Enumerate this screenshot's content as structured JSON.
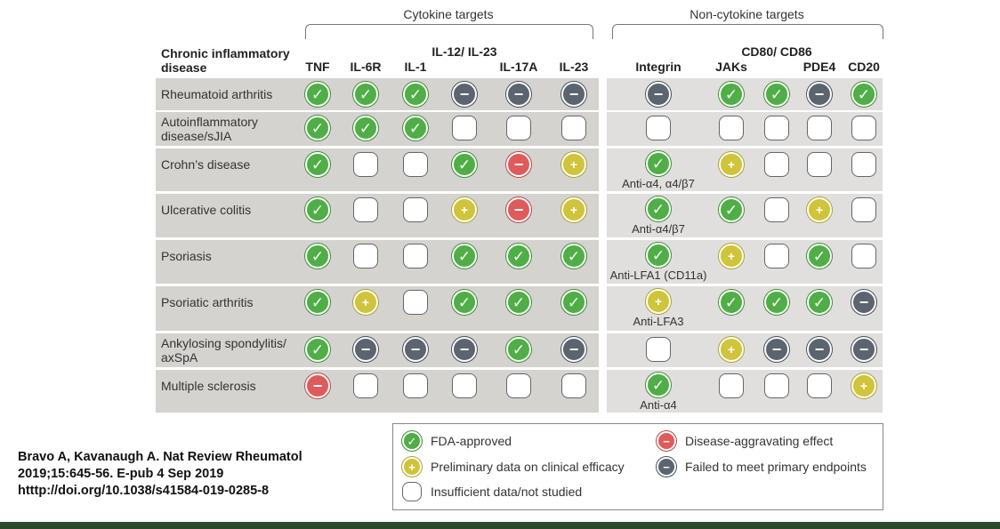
{
  "groups": {
    "cytokine": "Cytokine targets",
    "noncytokine": "Non-cytokine targets"
  },
  "disease_header": "Chronic inflammatory disease",
  "columns": [
    {
      "label": "TNF"
    },
    {
      "label": "IL-6R"
    },
    {
      "label": "IL-1"
    },
    {
      "label": "IL-12/ IL-23"
    },
    {
      "label": "IL-17A"
    },
    {
      "label": "IL-23"
    },
    {
      "label": "Integrin"
    },
    {
      "label": "JAKs"
    },
    {
      "label": "CD80/ CD86"
    },
    {
      "label": "PDE4"
    },
    {
      "label": "CD20"
    }
  ],
  "rows": [
    {
      "disease": "Rheumatoid arthritis",
      "cells": [
        "fda",
        "fda",
        "fda",
        "failed",
        "failed",
        "failed",
        "failed",
        "fda",
        "fda",
        "failed",
        "fda"
      ],
      "integrin_note": ""
    },
    {
      "disease": "Autoinflammatory disease/sJIA",
      "cells": [
        "fda",
        "fda",
        "fda",
        "none",
        "none",
        "none",
        "none",
        "none",
        "none",
        "none",
        "none"
      ],
      "integrin_note": ""
    },
    {
      "disease": "Crohn’s disease",
      "cells": [
        "fda",
        "none",
        "none",
        "fda",
        "aggr",
        "prelim",
        "fda",
        "prelim",
        "none",
        "none",
        "none"
      ],
      "integrin_note": "Anti-α4, α4/β7"
    },
    {
      "disease": "Ulcerative colitis",
      "cells": [
        "fda",
        "none",
        "none",
        "prelim",
        "aggr",
        "prelim",
        "fda",
        "fda",
        "none",
        "prelim",
        "none"
      ],
      "integrin_note": "Anti-α4/β7"
    },
    {
      "disease": "Psoriasis",
      "cells": [
        "fda",
        "none",
        "none",
        "fda",
        "fda",
        "fda",
        "fda",
        "prelim",
        "none",
        "fda",
        "none"
      ],
      "integrin_note": "Anti-LFA1 (CD11a)"
    },
    {
      "disease": "Psoriatic arthritis",
      "cells": [
        "fda",
        "prelim",
        "none",
        "fda",
        "fda",
        "fda",
        "prelim",
        "fda",
        "fda",
        "fda",
        "failed"
      ],
      "integrin_note": "Anti-LFA3"
    },
    {
      "disease": "Ankylosing spondylitis/ axSpA",
      "cells": [
        "fda",
        "failed",
        "failed",
        "failed",
        "fda",
        "failed",
        "none",
        "prelim",
        "failed",
        "failed",
        "failed"
      ],
      "integrin_note": ""
    },
    {
      "disease": "Multiple sclerosis",
      "cells": [
        "aggr",
        "none",
        "none",
        "none",
        "none",
        "none",
        "fda",
        "none",
        "none",
        "none",
        "prelim"
      ],
      "integrin_note": "Anti-α4"
    }
  ],
  "symbols": {
    "fda": "✓",
    "prelim": "+",
    "aggr": "−",
    "failed": "−",
    "none": ""
  },
  "legend": {
    "fda": "FDA-approved",
    "prelim": "Preliminary data on clinical efficacy",
    "none": "Insufficient data/not studied",
    "aggr": "Disease-aggravating effect",
    "failed": "Failed to meet primary endpoints"
  },
  "citation": {
    "line1": "Bravo A, Kavanaugh A. Nat Review Rheumatol",
    "line2": "2019;15:645-56. E-pub 4 Sep 2019",
    "line3": "htttp://doi.org/10.1038/s41584-019-0285-8"
  },
  "colors": {
    "fda": "#4fae45",
    "prelim": "#cfc43a",
    "aggr": "#df5b5b",
    "failed": "#5c6470",
    "band": "#e0dfdd",
    "bottom_bar": "#2b4a2c"
  }
}
